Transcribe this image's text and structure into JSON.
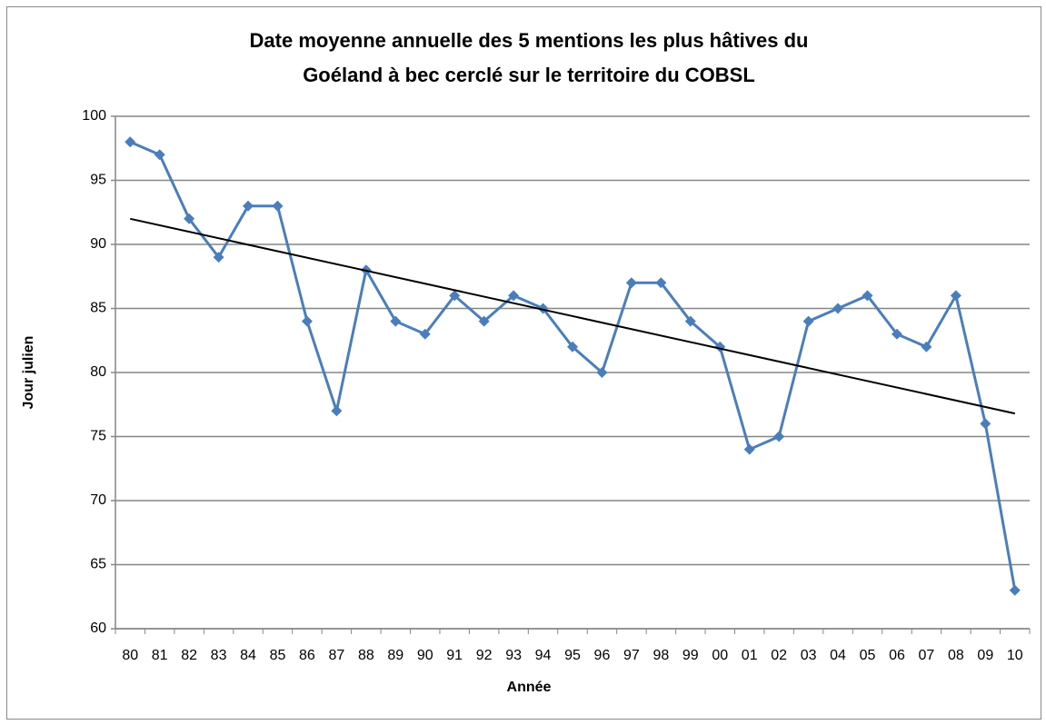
{
  "chart_data": {
    "type": "line",
    "title": [
      "Date moyenne annuelle des 5 mentions les plus hâtives du",
      "Goéland à bec cerclé sur le territoire du COBSL"
    ],
    "x_label": "Année",
    "y_label": "Jour julien",
    "categories": [
      "80",
      "81",
      "82",
      "83",
      "84",
      "85",
      "86",
      "87",
      "88",
      "89",
      "90",
      "91",
      "92",
      "93",
      "94",
      "95",
      "96",
      "97",
      "98",
      "99",
      "00",
      "01",
      "02",
      "03",
      "04",
      "05",
      "06",
      "07",
      "08",
      "09",
      "10"
    ],
    "series": [
      {
        "color": "#4a7ebb",
        "values": [
          98,
          97,
          92,
          89,
          93,
          93,
          84,
          77,
          88,
          84,
          83,
          86,
          84,
          86,
          85,
          82,
          80,
          87,
          87,
          84,
          82,
          74,
          75,
          84,
          85,
          86,
          83,
          82,
          86,
          76,
          63
        ]
      }
    ],
    "trendline": {
      "color": "#000000",
      "values": [
        92,
        76.8
      ]
    },
    "ylim": [
      60,
      100
    ],
    "yticks": [
      60,
      65,
      70,
      75,
      80,
      85,
      90,
      95,
      100
    ],
    "grid": true
  }
}
